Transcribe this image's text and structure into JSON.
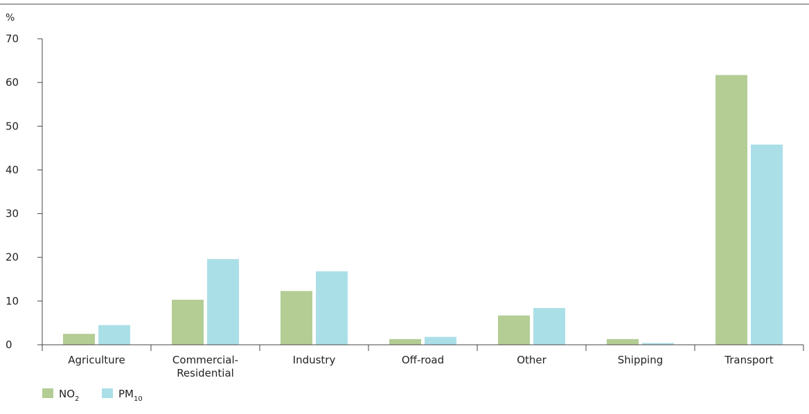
{
  "chart_data": {
    "type": "bar",
    "unit_label": "%",
    "y_ticks": [
      0,
      10,
      20,
      30,
      40,
      50,
      60,
      70
    ],
    "ylim": [
      0,
      70
    ],
    "categories": [
      [
        "Agriculture"
      ],
      [
        "Commercial-",
        "Residential"
      ],
      [
        "Industry"
      ],
      [
        "Off-road"
      ],
      [
        "Other"
      ],
      [
        "Shipping"
      ],
      [
        "Transport"
      ]
    ],
    "series": [
      {
        "name_main": "NO",
        "name_sub": "2",
        "color": "#b3cd94",
        "values": [
          2.5,
          10.3,
          12.3,
          1.3,
          6.7,
          1.3,
          61.7
        ]
      },
      {
        "name_main": "PM",
        "name_sub": "10",
        "color": "#abdfe8",
        "values": [
          4.5,
          19.6,
          16.8,
          1.8,
          8.4,
          0.4,
          45.8
        ]
      }
    ],
    "grid": false,
    "legend_position": "bottom-left"
  }
}
